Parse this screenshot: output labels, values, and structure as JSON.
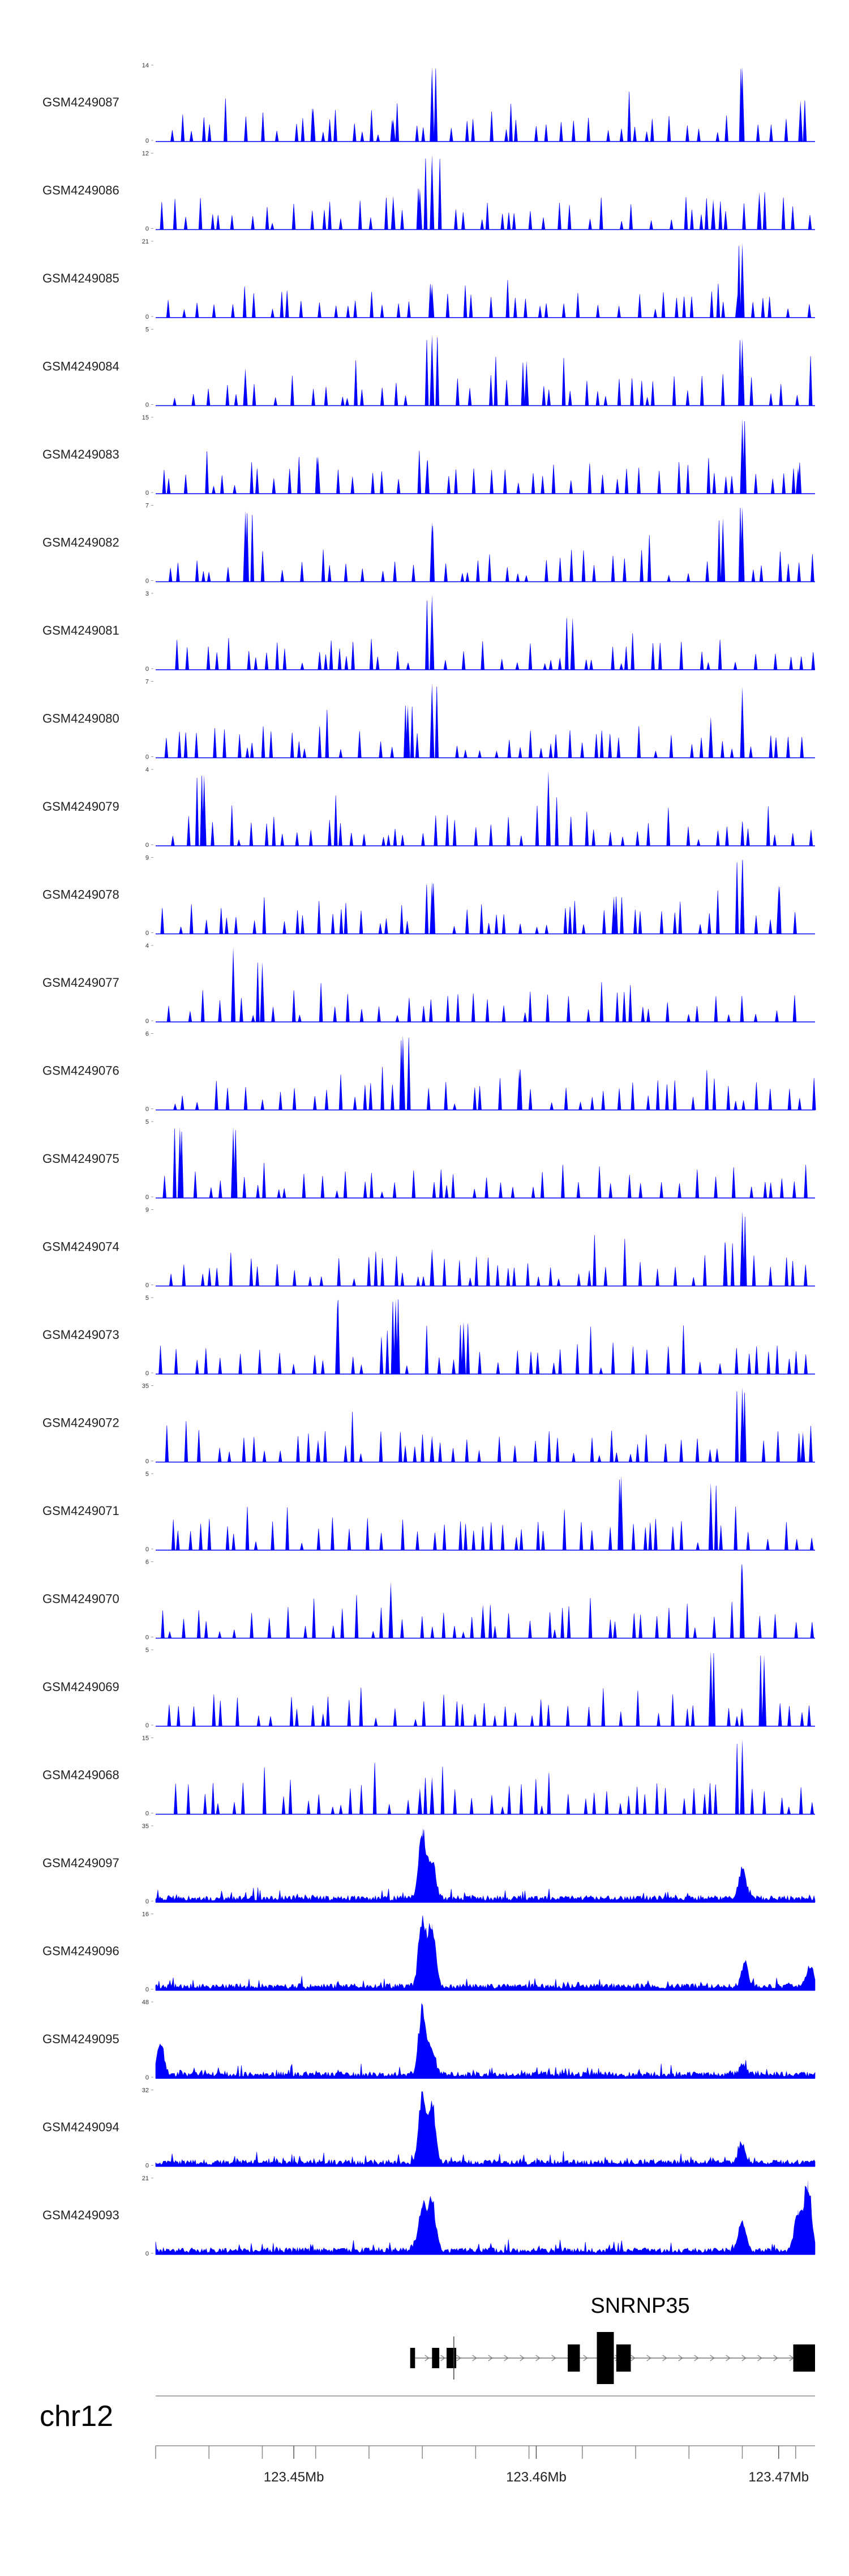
{
  "figure": {
    "chromosome": "chr12",
    "gene": {
      "name": "SNRNP35",
      "strand": "+"
    },
    "colors": {
      "signal": "#0000ff",
      "axis": "#888888",
      "text": "#222222",
      "gene": "#000000"
    }
  },
  "chart_data": {
    "type": "area",
    "title": "",
    "xlabel": "chr12",
    "ylabel": "",
    "xlim": [
      123.4443,
      123.4715
    ],
    "x_ticks": [
      {
        "value": 123.45,
        "label": "123.45Mb"
      },
      {
        "value": 123.46,
        "label": "123.46Mb"
      },
      {
        "value": 123.47,
        "label": "123.47Mb"
      }
    ],
    "minor_ticks": [
      123.4443,
      123.4465,
      123.4487,
      123.4509,
      123.4531,
      123.4553,
      123.4575,
      123.4597,
      123.4619,
      123.4641,
      123.4663,
      123.4685,
      123.4707
    ],
    "gene_model": {
      "name": "SNRNP35",
      "exons": [
        {
          "start": 123.4548,
          "end": 123.455,
          "height": "utr"
        },
        {
          "start": 123.4557,
          "end": 123.456,
          "height": "utr"
        },
        {
          "start": 123.4563,
          "end": 123.4567,
          "height": "utr"
        },
        {
          "start": 123.4613,
          "end": 123.4618,
          "height": "cds"
        },
        {
          "start": 123.4625,
          "end": 123.4632,
          "height": "cds_tall"
        },
        {
          "start": 123.4633,
          "end": 123.4639,
          "height": "cds"
        },
        {
          "start": 123.4706,
          "end": 123.4715,
          "height": "cds"
        }
      ],
      "intron_start": 123.4548,
      "intron_end": 123.4715,
      "tss_marker": 123.4566
    },
    "tracks": [
      {
        "name": "GSM4249087",
        "ymax": 14,
        "style": "spiky",
        "peaks": [
          {
            "x": 123.4557,
            "h": 1.0
          },
          {
            "x": 123.4685,
            "h": 1.0
          },
          {
            "x": 123.4709,
            "h": 0.55
          },
          {
            "x": 123.4508,
            "h": 0.45
          },
          {
            "x": 123.4541,
            "h": 0.3
          }
        ]
      },
      {
        "name": "GSM4249086",
        "ymax": 12,
        "style": "spiky",
        "peaks": [
          {
            "x": 123.4557,
            "h": 1.0
          },
          {
            "x": 123.4552,
            "h": 0.55
          },
          {
            "x": 123.4541,
            "h": 0.45
          },
          {
            "x": 123.4692,
            "h": 0.5
          },
          {
            "x": 123.4673,
            "h": 0.4
          }
        ]
      },
      {
        "name": "GSM4249085",
        "ymax": 21,
        "style": "spiky",
        "peaks": [
          {
            "x": 123.4685,
            "h": 1.0
          },
          {
            "x": 123.4557,
            "h": 0.45
          },
          {
            "x": 123.4683,
            "h": 0.3
          }
        ]
      },
      {
        "name": "GSM4249084",
        "ymax": 5,
        "style": "spiky",
        "peaks": [
          {
            "x": 123.4557,
            "h": 0.95
          },
          {
            "x": 123.4685,
            "h": 0.9
          },
          {
            "x": 123.4596,
            "h": 0.6
          },
          {
            "x": 123.448,
            "h": 0.5
          }
        ]
      },
      {
        "name": "GSM4249083",
        "ymax": 15,
        "style": "spiky",
        "peaks": [
          {
            "x": 123.4685,
            "h": 1.0
          },
          {
            "x": 123.451,
            "h": 0.5
          },
          {
            "x": 123.4555,
            "h": 0.45
          },
          {
            "x": 123.4708,
            "h": 0.35
          }
        ]
      },
      {
        "name": "GSM4249082",
        "ymax": 7,
        "style": "spiky",
        "peaks": [
          {
            "x": 123.448,
            "h": 0.95
          },
          {
            "x": 123.4685,
            "h": 1.0
          },
          {
            "x": 123.4677,
            "h": 0.85
          },
          {
            "x": 123.4557,
            "h": 0.8
          }
        ]
      },
      {
        "name": "GSM4249081",
        "ymax": 3,
        "style": "spiky",
        "peaks": [
          {
            "x": 123.4557,
            "h": 1.0
          },
          {
            "x": 123.4615,
            "h": 0.7
          }
        ]
      },
      {
        "name": "GSM4249080",
        "ymax": 7,
        "style": "spiky",
        "peaks": [
          {
            "x": 123.4557,
            "h": 1.0
          },
          {
            "x": 123.4685,
            "h": 0.95
          },
          {
            "x": 123.4547,
            "h": 0.7
          },
          {
            "x": 123.4672,
            "h": 0.55
          }
        ]
      },
      {
        "name": "GSM4249079",
        "ymax": 4,
        "style": "spiky",
        "peaks": [
          {
            "x": 123.4605,
            "h": 1.0
          },
          {
            "x": 123.4463,
            "h": 0.95
          }
        ]
      },
      {
        "name": "GSM4249078",
        "ymax": 9,
        "style": "spiky",
        "peaks": [
          {
            "x": 123.4685,
            "h": 1.0
          },
          {
            "x": 123.4557,
            "h": 0.7
          },
          {
            "x": 123.47,
            "h": 0.65
          },
          {
            "x": 123.4632,
            "h": 0.5
          }
        ]
      },
      {
        "name": "GSM4249077",
        "ymax": 4,
        "style": "spiky",
        "peaks": [
          {
            "x": 123.4475,
            "h": 1.0
          },
          {
            "x": 123.4487,
            "h": 0.8
          }
        ]
      },
      {
        "name": "GSM4249076",
        "ymax": 6,
        "style": "spiky",
        "peaks": [
          {
            "x": 123.4545,
            "h": 1.0
          },
          {
            "x": 123.4593,
            "h": 0.55
          }
        ]
      },
      {
        "name": "GSM4249075",
        "ymax": 5,
        "style": "spiky",
        "peaks": [
          {
            "x": 123.4453,
            "h": 0.95
          },
          {
            "x": 123.4475,
            "h": 0.95
          }
        ]
      },
      {
        "name": "GSM4249074",
        "ymax": 9,
        "style": "spiky",
        "peaks": [
          {
            "x": 123.4685,
            "h": 1.0
          },
          {
            "x": 123.4557,
            "h": 0.5
          },
          {
            "x": 123.4678,
            "h": 0.6
          }
        ]
      },
      {
        "name": "GSM4249073",
        "ymax": 5,
        "style": "spiky",
        "peaks": [
          {
            "x": 123.4518,
            "h": 1.0
          },
          {
            "x": 123.4542,
            "h": 1.0
          },
          {
            "x": 123.457,
            "h": 0.7
          }
        ]
      },
      {
        "name": "GSM4249072",
        "ymax": 35,
        "style": "spiky",
        "peaks": [
          {
            "x": 123.4685,
            "h": 1.0
          },
          {
            "x": 123.4557,
            "h": 0.35
          },
          {
            "x": 123.451,
            "h": 0.3
          },
          {
            "x": 123.471,
            "h": 0.4
          }
        ]
      },
      {
        "name": "GSM4249071",
        "ymax": 5,
        "style": "spiky",
        "peaks": [
          {
            "x": 123.4635,
            "h": 1.0
          },
          {
            "x": 123.4672,
            "h": 0.9
          }
        ]
      },
      {
        "name": "GSM4249070",
        "ymax": 6,
        "style": "spiky",
        "peaks": [
          {
            "x": 123.4685,
            "h": 1.0
          },
          {
            "x": 123.454,
            "h": 0.75
          },
          {
            "x": 123.4578,
            "h": 0.45
          }
        ]
      },
      {
        "name": "GSM4249069",
        "ymax": 5,
        "style": "spiky",
        "peaks": [
          {
            "x": 123.4672,
            "h": 1.0
          },
          {
            "x": 123.4694,
            "h": 0.95
          }
        ]
      },
      {
        "name": "GSM4249068",
        "ymax": 15,
        "style": "spiky",
        "peaks": [
          {
            "x": 123.4685,
            "h": 1.0
          },
          {
            "x": 123.4557,
            "h": 0.5
          },
          {
            "x": 123.4552,
            "h": 0.35
          }
        ]
      },
      {
        "name": "GSM4249097",
        "ymax": 35,
        "style": "dense",
        "peaks": [
          {
            "x": 123.4553,
            "h": 1.0
          },
          {
            "x": 123.4557,
            "h": 0.55
          },
          {
            "x": 123.4685,
            "h": 0.45
          }
        ]
      },
      {
        "name": "GSM4249096",
        "ymax": 16,
        "style": "dense",
        "peaks": [
          {
            "x": 123.4553,
            "h": 1.0
          },
          {
            "x": 123.4557,
            "h": 0.9
          },
          {
            "x": 123.4686,
            "h": 0.35
          },
          {
            "x": 123.4713,
            "h": 0.3
          }
        ]
      },
      {
        "name": "GSM4249095",
        "ymax": 48,
        "style": "dense",
        "peaks": [
          {
            "x": 123.4553,
            "h": 1.0
          },
          {
            "x": 123.4557,
            "h": 0.35
          },
          {
            "x": 123.4445,
            "h": 0.45
          },
          {
            "x": 123.4685,
            "h": 0.12
          }
        ]
      },
      {
        "name": "GSM4249094",
        "ymax": 32,
        "style": "dense",
        "peaks": [
          {
            "x": 123.4553,
            "h": 1.0
          },
          {
            "x": 123.4557,
            "h": 0.85
          },
          {
            "x": 123.4685,
            "h": 0.25
          }
        ]
      },
      {
        "name": "GSM4249093",
        "ymax": 21,
        "style": "dense",
        "peaks": [
          {
            "x": 123.4712,
            "h": 1.0
          },
          {
            "x": 123.4553,
            "h": 0.7
          },
          {
            "x": 123.4557,
            "h": 0.75
          },
          {
            "x": 123.4685,
            "h": 0.45
          },
          {
            "x": 123.4708,
            "h": 0.6
          }
        ]
      }
    ]
  }
}
